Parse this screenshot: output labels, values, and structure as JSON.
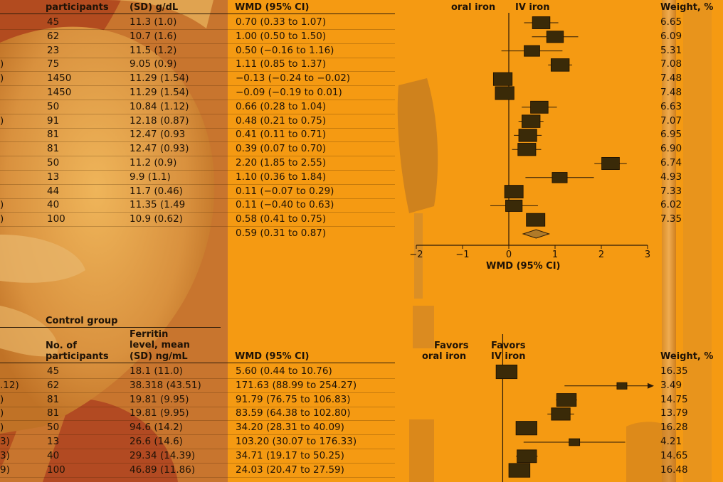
{
  "top_table": {
    "col_headers": {
      "participants": "participants",
      "mean": "(SD) g/dL",
      "wmd": "WMD (95% CI)",
      "favors_left": "oral iron",
      "favors_right": "IV iron",
      "weight": "Weight, %"
    },
    "rows": [
      {
        "lead": "",
        "n": "45",
        "mean": "11.3 (1.0)",
        "wmd": "0.70 (0.33 to 1.07)",
        "weight": "6.65"
      },
      {
        "lead": "",
        "n": "62",
        "mean": "10.7 (1.6)",
        "wmd": "1.00 (0.50 to 1.50)",
        "weight": "6.09"
      },
      {
        "lead": "",
        "n": "23",
        "mean": "11.5 (1.2)",
        "wmd": "0.50 (−0.16 to 1.16)",
        "weight": "5.31"
      },
      {
        "lead": ")",
        "n": "75",
        "mean": "9.05 (0.9)",
        "wmd": "1.11 (0.85 to 1.37)",
        "weight": "7.08"
      },
      {
        "lead": ")",
        "n": "1450",
        "mean": "11.29 (1.54)",
        "wmd": "−0.13 (−0.24 to −0.02)",
        "weight": "7.48"
      },
      {
        "lead": "",
        "n": "1450",
        "mean": "11.29 (1.54)",
        "wmd": "−0.09 (−0.19 to 0.01)",
        "weight": "7.48"
      },
      {
        "lead": "",
        "n": "50",
        "mean": "10.84 (1.12)",
        "wmd": "0.66 (0.28 to 1.04)",
        "weight": "6.63"
      },
      {
        "lead": ")",
        "n": "91",
        "mean": "12.18 (0.87)",
        "wmd": "0.48 (0.21 to 0.75)",
        "weight": "7.07"
      },
      {
        "lead": "",
        "n": "81",
        "mean": "12.47 (0.93",
        "wmd": "0.41 (0.11 to 0.71)",
        "weight": "6.95"
      },
      {
        "lead": "",
        "n": "81",
        "mean": "12.47 (0.93)",
        "wmd": "0.39 (0.07 to 0.70)",
        "weight": "6.90"
      },
      {
        "lead": "",
        "n": "50",
        "mean": "11.2 (0.9)",
        "wmd": "2.20 (1.85 to 2.55)",
        "weight": "6.74"
      },
      {
        "lead": "",
        "n": "13",
        "mean": "9.9 (1.1)",
        "wmd": "1.10 (0.36 to 1.84)",
        "weight": "4.93"
      },
      {
        "lead": "",
        "n": "44",
        "mean": "11.7 (0.46)",
        "wmd": "0.11 (−0.07 to 0.29)",
        "weight": "7.33"
      },
      {
        "lead": ")",
        "n": "40",
        "mean": "11.35 (1.49",
        "wmd": "0.11 (−0.40 to 0.63)",
        "weight": "6.02"
      },
      {
        "lead": ")",
        "n": "100",
        "mean": "10.9 (0.62)",
        "wmd": "0.58 (0.41 to 0.75)",
        "weight": "7.35"
      }
    ],
    "overall_wmd": "0.59 (0.31 to 0.87)",
    "axis_label": "WMD (95% CI)"
  },
  "bottom_table": {
    "group_header": "Control group",
    "col_headers": {
      "ferritin_1": "Ferritin",
      "ferritin_2": "level, mean",
      "ferritin_3": "(SD) ng/mL",
      "n_1": "No. of",
      "n_2": "participants",
      "wmd": "WMD (95% CI)",
      "favors_left_1": "Favors",
      "favors_left_2": "oral iron",
      "favors_right_1": "Favors",
      "favors_right_2": "IV iron",
      "weight": "Weight, %"
    },
    "rows": [
      {
        "lead": "",
        "n": "45",
        "mean": "18.1 (11.0)",
        "wmd": "5.60 (0.44 to 10.76)",
        "weight": "16.35"
      },
      {
        "lead": ".12)",
        "n": "62",
        "mean": "38.318 (43.51)",
        "wmd": "171.63 (88.99 to 254.27)",
        "weight": "3.49"
      },
      {
        "lead": ")",
        "n": "81",
        "mean": "19.81 (9.95)",
        "wmd": "91.79 (76.75 to 106.83)",
        "weight": "14.75"
      },
      {
        "lead": ")",
        "n": "81",
        "mean": "19.81 (9.95)",
        "wmd": "83.59 (64.38 to 102.80)",
        "weight": "13.79"
      },
      {
        "lead": ")",
        "n": "50",
        "mean": "94.6 (14.2)",
        "wmd": "34.20 (28.31 to 40.09)",
        "weight": "16.28"
      },
      {
        "lead": "3)",
        "n": "13",
        "mean": "26.6 (14.6)",
        "wmd": "103.20 (30.07 to 176.33)",
        "weight": "4.21"
      },
      {
        "lead": "3)",
        "n": "40",
        "mean": "29.34 (14.39)",
        "wmd": "34.71 (19.17 to 50.25)",
        "weight": "14.65"
      },
      {
        "lead": "9)",
        "n": "100",
        "mean": "46.89 (11.86)",
        "wmd": "24.03 (20.47 to 27.59)",
        "weight": "16.48"
      }
    ]
  },
  "chart_data": [
    {
      "type": "scatter",
      "subtype": "forest",
      "xlabel": "WMD (95% CI)",
      "xlim": [
        -2,
        3
      ],
      "xticks": [
        "−2",
        "−1",
        "0",
        "1",
        "2",
        "3"
      ],
      "xtick_values": [
        -2,
        -1,
        0,
        1,
        2,
        3
      ],
      "favors_left": "oral iron",
      "favors_right": "IV iron",
      "estimates": [
        0.7,
        1.0,
        0.5,
        1.11,
        -0.13,
        -0.09,
        0.66,
        0.48,
        0.41,
        0.39,
        2.2,
        1.1,
        0.11,
        0.11,
        0.58
      ],
      "ci_low": [
        0.33,
        0.5,
        -0.16,
        0.85,
        -0.24,
        -0.19,
        0.28,
        0.21,
        0.11,
        0.07,
        1.85,
        0.36,
        -0.07,
        -0.4,
        0.41
      ],
      "ci_high": [
        1.07,
        1.5,
        1.16,
        1.37,
        -0.02,
        0.01,
        1.04,
        0.75,
        0.71,
        0.7,
        2.55,
        1.84,
        0.29,
        0.63,
        0.75
      ],
      "weights": [
        6.65,
        6.09,
        5.31,
        7.08,
        7.48,
        7.48,
        6.63,
        7.07,
        6.95,
        6.9,
        6.74,
        4.93,
        7.33,
        6.02,
        7.35
      ],
      "overall": {
        "estimate": 0.59,
        "ci_low": 0.31,
        "ci_high": 0.87
      },
      "colors": {
        "marker": "#3a2a08",
        "line": "#2a1a08"
      }
    },
    {
      "type": "scatter",
      "subtype": "forest",
      "favors_left": "oral iron",
      "favors_right": "IV iron",
      "xlim": [
        -150,
        270
      ],
      "estimates": [
        5.6,
        171.63,
        91.79,
        83.59,
        34.2,
        103.2,
        34.71,
        24.03
      ],
      "ci_low": [
        0.44,
        88.99,
        76.75,
        64.38,
        28.31,
        30.07,
        19.17,
        20.47
      ],
      "ci_high": [
        10.76,
        254.27,
        106.83,
        102.8,
        40.09,
        176.33,
        50.25,
        27.59
      ],
      "weights": [
        16.35,
        3.49,
        14.75,
        13.79,
        16.28,
        4.21,
        14.65,
        16.48
      ],
      "clipped_upper": [
        false,
        true,
        false,
        false,
        false,
        false,
        false,
        false
      ],
      "colors": {
        "marker": "#3a2a08",
        "line": "#2a1a08"
      }
    }
  ]
}
